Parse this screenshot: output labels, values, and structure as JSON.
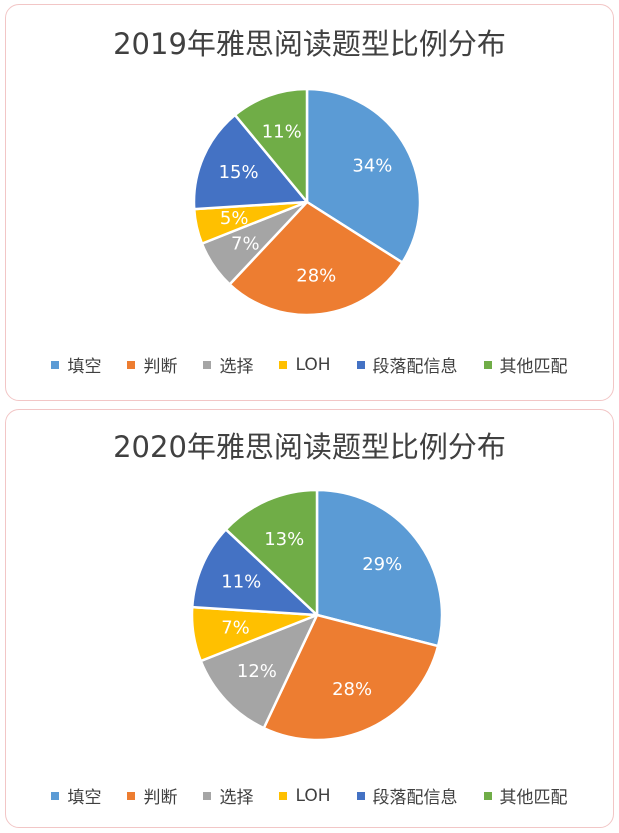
{
  "colors": {
    "fill_blank": "#5b9bd5",
    "true_false": "#ed7d31",
    "multiple_choice": "#a5a5a5",
    "loh": "#ffc000",
    "paragraph_match": "#4472c4",
    "other_match": "#70ad47"
  },
  "chart_data": [
    {
      "type": "pie",
      "title": "2019年雅思阅读题型比例分布",
      "categories": [
        "填空",
        "判断",
        "选择",
        "LOH",
        "段落配信息",
        "其他匹配"
      ],
      "values": [
        34,
        28,
        7,
        5,
        15,
        11
      ],
      "labels": [
        "34%",
        "28%",
        "7%",
        "5%",
        "15%",
        "11%"
      ],
      "legend_position": "bottom"
    },
    {
      "type": "pie",
      "title": "2020年雅思阅读题型比例分布",
      "categories": [
        "填空",
        "判断",
        "选择",
        "LOH",
        "段落配信息",
        "其他匹配"
      ],
      "values": [
        29,
        28,
        12,
        7,
        11,
        13
      ],
      "labels": [
        "29%",
        "28%",
        "12%",
        "7%",
        "11%",
        "13%"
      ],
      "legend_position": "bottom"
    }
  ]
}
